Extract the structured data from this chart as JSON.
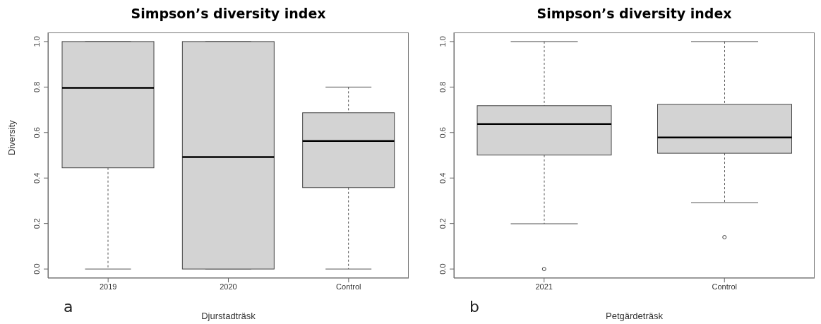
{
  "chart_data": [
    {
      "type": "box",
      "title": "Simpson’s diversity index",
      "xlabel": "Djurstadträsk",
      "ylabel": "Diversity",
      "annotations": [
        "a"
      ],
      "categories": [
        "2019",
        "2020",
        "Control"
      ],
      "color": "#d3d3d3",
      "ylim": [
        -0.04,
        1.04
      ],
      "yticks": [
        {
          "value": 0,
          "label": "0.0"
        },
        {
          "value": 0.2,
          "label": "0.2"
        },
        {
          "value": 0.4,
          "label": "0.4"
        },
        {
          "value": 0.6,
          "label": "0.6"
        },
        {
          "value": 0.8,
          "label": "0.8"
        },
        {
          "value": 1,
          "label": "1.0"
        }
      ],
      "grid": false,
      "legend": false,
      "boxes": [
        {
          "low": 0,
          "q1": 0.445,
          "median": 0.796,
          "q3": 1,
          "high": 1
        },
        {
          "low": 0,
          "q1": 0,
          "median": 0.492,
          "q3": 1,
          "high": 1
        },
        {
          "low": 0,
          "q1": 0.358,
          "median": 0.563,
          "q3": 0.687,
          "high": 0.8
        }
      ]
    },
    {
      "type": "box",
      "title": "Simpson’s diversity index",
      "xlabel": "Petgärdeträsk",
      "annotations": [
        "b"
      ],
      "categories": [
        "2021",
        "Control"
      ],
      "color": "#d3d3d3",
      "ylim": [
        -0.04,
        1.04
      ],
      "yticks": [
        {
          "value": 0,
          "label": "0.0"
        },
        {
          "value": 0.2,
          "label": "0.2"
        },
        {
          "value": 0.4,
          "label": "0.4"
        },
        {
          "value": 0.6,
          "label": "0.6"
        },
        {
          "value": 0.8,
          "label": "0.8"
        },
        {
          "value": 1,
          "label": "1.0"
        }
      ],
      "grid": false,
      "legend": false,
      "marker": "circle",
      "boxes": [
        {
          "low": 0.199,
          "q1": 0.501,
          "median": 0.637,
          "q3": 0.718,
          "high": 1,
          "outliers": [
            0
          ]
        },
        {
          "low": 0.292,
          "q1": 0.509,
          "median": 0.578,
          "q3": 0.724,
          "high": 1,
          "outliers": [
            0.14
          ]
        }
      ]
    }
  ]
}
